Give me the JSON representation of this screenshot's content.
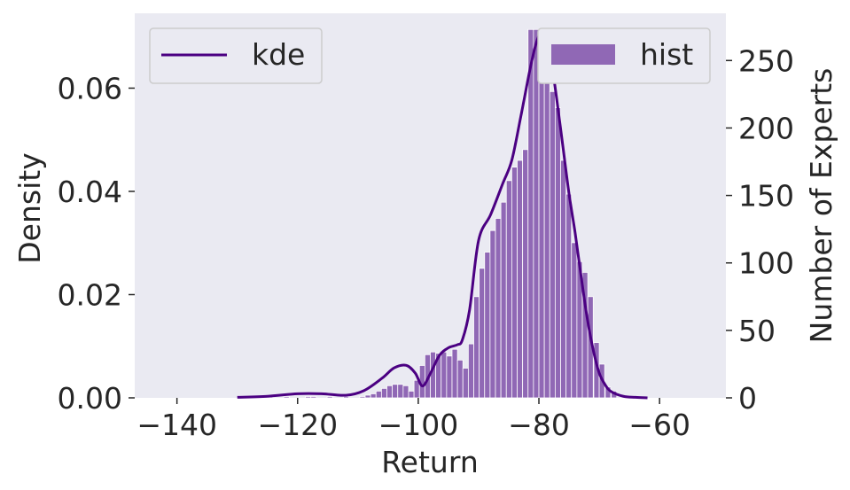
{
  "chart_data": {
    "type": "bar",
    "xlabel": "Return",
    "ylabel_left": "Density",
    "ylabel_right": "Number of Experts",
    "xlim": [
      -147,
      -49
    ],
    "xticks": [
      -140,
      -120,
      -100,
      -80,
      -60
    ],
    "xtick_labels": [
      "−140",
      "−120",
      "−100",
      "−80",
      "−60"
    ],
    "ylim_left": [
      0,
      0.0745
    ],
    "yticks_left": [
      0.0,
      0.02,
      0.04,
      0.06
    ],
    "ytick_labels_left": [
      "0.00",
      "0.02",
      "0.04",
      "0.06"
    ],
    "ylim_right": [
      0,
      285
    ],
    "yticks_right": [
      0,
      50,
      100,
      150,
      200,
      250
    ],
    "ytick_labels_right": [
      "0",
      "50",
      "100",
      "150",
      "200",
      "250"
    ],
    "grid": false,
    "background": "#eaeaf2",
    "hist": {
      "name": "hist",
      "color": "#9068b5",
      "edgecolor": "#ffffff",
      "bin_width": 0.9,
      "bins_start": [
        -125.0,
        -124.1,
        -123.2,
        -122.3,
        -121.4,
        -120.5,
        -119.6,
        -118.7,
        -117.8,
        -116.9,
        -116.0,
        -115.1,
        -114.2,
        -113.3,
        -112.4,
        -111.5,
        -110.6,
        -109.7,
        -108.8,
        -107.9,
        -107.0,
        -106.1,
        -105.2,
        -104.3,
        -103.4,
        -102.5,
        -101.6,
        -100.7,
        -99.8,
        -98.9,
        -98.0,
        -97.1,
        -96.2,
        -95.3,
        -94.4,
        -93.5,
        -92.6,
        -91.7,
        -90.8,
        -89.9,
        -89.0,
        -88.1,
        -87.2,
        -86.3,
        -85.4,
        -84.5,
        -83.6,
        -82.7,
        -81.8,
        -80.9,
        -80.0,
        -79.1,
        -78.2,
        -77.3,
        -76.4,
        -75.5,
        -74.6,
        -73.7,
        -72.8,
        -71.9,
        -70.9,
        -70.0,
        -69.0,
        -68.0
      ],
      "counts": [
        1,
        0,
        0,
        1,
        0,
        0,
        0,
        1,
        1,
        0,
        0,
        1,
        0,
        0,
        1,
        0,
        0,
        1,
        2,
        3,
        5,
        7,
        9,
        10,
        10,
        9,
        5,
        13,
        24,
        32,
        34,
        33,
        34,
        31,
        36,
        28,
        22,
        40,
        75,
        96,
        108,
        124,
        133,
        145,
        161,
        171,
        176,
        184,
        273,
        273,
        268,
        248,
        227,
        215,
        176,
        151,
        115,
        101,
        93,
        75,
        41,
        25,
        8,
        5
      ]
    },
    "kde": {
      "name": "kde",
      "color": "#4b0082",
      "x": [
        -130,
        -125,
        -120,
        -116,
        -112,
        -109,
        -106,
        -104,
        -102,
        -100.5,
        -99.3,
        -98,
        -96.5,
        -95,
        -93.5,
        -92.7,
        -91.5,
        -90,
        -88,
        -86,
        -84.5,
        -83,
        -81.5,
        -80.5,
        -79.7,
        -79,
        -78,
        -77,
        -76,
        -75,
        -74,
        -73,
        -72,
        -71,
        -70,
        -69,
        -68,
        -66,
        -64,
        -62
      ],
      "y": [
        0.0001,
        0.0003,
        0.0008,
        0.0008,
        0.0005,
        0.0014,
        0.0038,
        0.0058,
        0.0063,
        0.0048,
        0.0023,
        0.0047,
        0.0082,
        0.0097,
        0.0103,
        0.0112,
        0.017,
        0.0305,
        0.0355,
        0.0415,
        0.046,
        0.0545,
        0.0635,
        0.0685,
        0.0707,
        0.0702,
        0.0655,
        0.0575,
        0.0485,
        0.0395,
        0.032,
        0.0235,
        0.0155,
        0.0093,
        0.0048,
        0.0025,
        0.0012,
        0.0003,
        0.0001,
        0.0
      ]
    },
    "legend_left": {
      "label": "kde",
      "position": "upper left"
    },
    "legend_right": {
      "label": "hist",
      "position": "upper right"
    }
  }
}
